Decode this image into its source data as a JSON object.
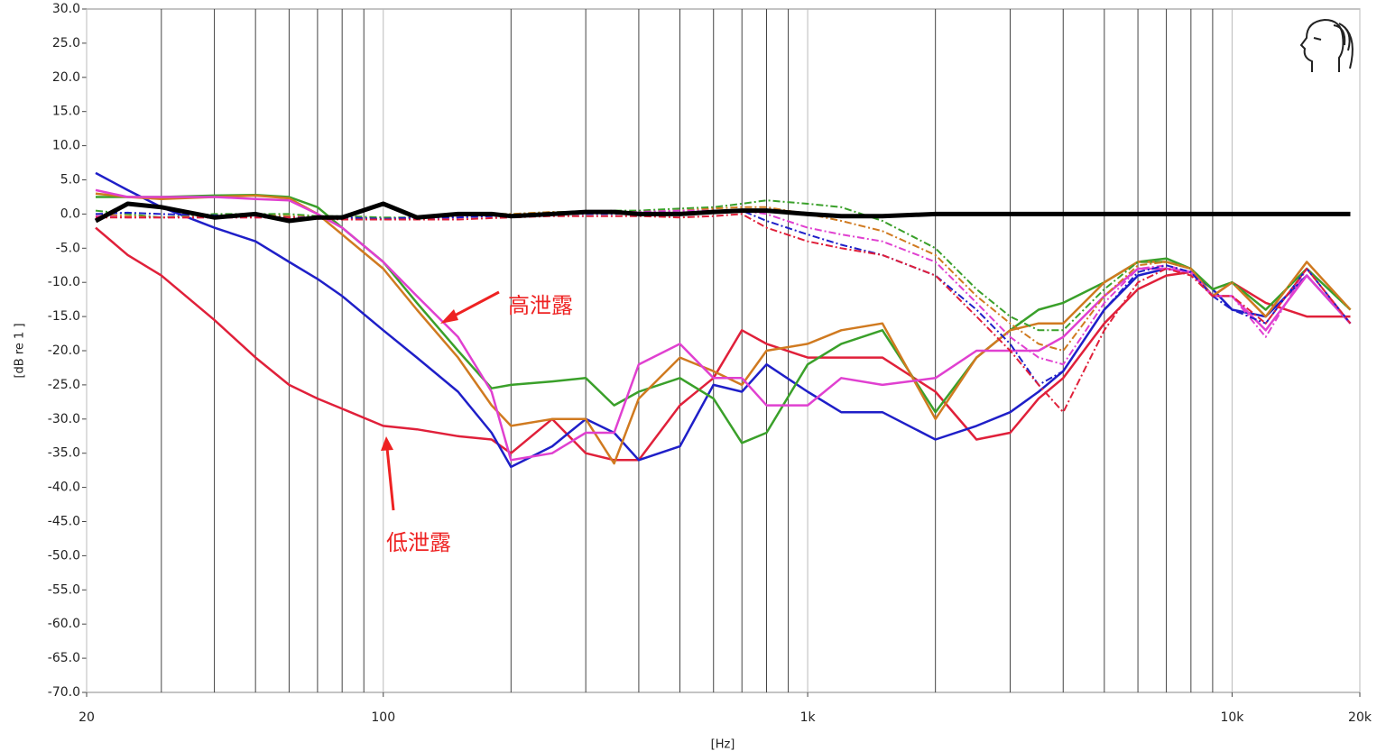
{
  "chart_data": {
    "type": "line",
    "x_label": "[Hz]",
    "y_label": "[dB re 1 ]",
    "xlog": true,
    "xlim": [
      20,
      20000
    ],
    "ylim": [
      -70,
      30
    ],
    "grid": true,
    "xticks": [
      {
        "value": 20,
        "label": "20"
      },
      {
        "value": 100,
        "label": "100"
      },
      {
        "value": 1000,
        "label": "1k"
      },
      {
        "value": 10000,
        "label": "10k"
      },
      {
        "value": 20000,
        "label": "20k"
      }
    ],
    "x_minor_grid": [
      30,
      40,
      50,
      60,
      70,
      80,
      90,
      200,
      300,
      400,
      500,
      600,
      700,
      800,
      900,
      2000,
      3000,
      4000,
      5000,
      6000,
      7000,
      8000,
      9000
    ],
    "yticks": [
      {
        "value": 30,
        "label": "30.0"
      },
      {
        "value": 25,
        "label": "25.0"
      },
      {
        "value": 20,
        "label": "20.0"
      },
      {
        "value": 15,
        "label": "15.0"
      },
      {
        "value": 10,
        "label": "10.0"
      },
      {
        "value": 5,
        "label": "5.0"
      },
      {
        "value": 0,
        "label": "0.0"
      },
      {
        "value": -5,
        "label": "-5.0"
      },
      {
        "value": -10,
        "label": "-10.0"
      },
      {
        "value": -15,
        "label": "-15.0"
      },
      {
        "value": -20,
        "label": "-20.0"
      },
      {
        "value": -25,
        "label": "-25.0"
      },
      {
        "value": -30,
        "label": "-30.0"
      },
      {
        "value": -35,
        "label": "-35.0"
      },
      {
        "value": -40,
        "label": "-40.0"
      },
      {
        "value": -45,
        "label": "-45.0"
      },
      {
        "value": -50,
        "label": "-50.0"
      },
      {
        "value": -55,
        "label": "-55.0"
      },
      {
        "value": -60,
        "label": "-60.0"
      },
      {
        "value": -65,
        "label": "-65.0"
      },
      {
        "value": -70,
        "label": "-70.0"
      }
    ],
    "annotations": [
      "高泄露",
      "低泄露"
    ],
    "x": [
      21,
      25,
      30,
      40,
      50,
      60,
      70,
      80,
      100,
      120,
      150,
      180,
      200,
      250,
      300,
      350,
      400,
      500,
      600,
      700,
      800,
      1000,
      1200,
      1500,
      2000,
      2500,
      3000,
      3500,
      4000,
      5000,
      6000,
      7000,
      8000,
      9000,
      10000,
      12000,
      15000,
      19000
    ],
    "series": [
      {
        "color": "#e0203a",
        "style": "solid",
        "values": [
          -2,
          -6,
          -9,
          -15.5,
          -21,
          -25,
          -27,
          -28.5,
          -31,
          -31.5,
          -32.5,
          -33,
          -35,
          -30,
          -35,
          -36,
          -36,
          -28,
          -24,
          -17,
          -19,
          -21,
          -21,
          -21,
          -26,
          -33,
          -32,
          -27,
          -24,
          -16,
          -11,
          -9,
          -8.5,
          -12,
          -10,
          -13,
          -15,
          -15
        ]
      },
      {
        "color": "#1f1fc8",
        "style": "solid",
        "values": [
          6,
          3.5,
          1,
          -2,
          -4,
          -7,
          -9.5,
          -12,
          -17,
          -21,
          -26,
          -32,
          -37,
          -34,
          -30,
          -32,
          -36,
          -34,
          -25,
          -26,
          -22,
          -26,
          -29,
          -29,
          -33,
          -31,
          -29,
          -26,
          -23,
          -14,
          -9,
          -8,
          -8.5,
          -11,
          -14,
          -15,
          -9,
          -16
        ]
      },
      {
        "color": "#3aa02a",
        "style": "solid",
        "values": [
          2.5,
          2.5,
          2.5,
          2.7,
          2.8,
          2.5,
          1,
          -2,
          -7,
          -13,
          -20,
          -25.5,
          -25,
          -24.5,
          -24,
          -28,
          -26,
          -24,
          -27,
          -33.5,
          -32,
          -22,
          -19,
          -17,
          -29,
          -21,
          -17,
          -14,
          -13,
          -10,
          -7,
          -6.5,
          -8,
          -11,
          -10,
          -14,
          -8,
          -14
        ]
      },
      {
        "color": "#d07a20",
        "style": "solid",
        "values": [
          3,
          2.5,
          2.2,
          2.5,
          2.7,
          2.3,
          0,
          -3,
          -8,
          -14,
          -21,
          -28,
          -31,
          -30,
          -30,
          -36.5,
          -27,
          -21,
          -23,
          -25,
          -20,
          -19,
          -17,
          -16,
          -30,
          -21,
          -17,
          -16,
          -16,
          -10,
          -7,
          -7,
          -8,
          -12,
          -10,
          -15,
          -7,
          -14
        ]
      },
      {
        "color": "#e040d0",
        "style": "solid",
        "values": [
          3.5,
          2.5,
          2.5,
          2.5,
          2.2,
          2,
          0,
          -2,
          -7,
          -12,
          -18,
          -26,
          -36,
          -35,
          -32,
          -32,
          -22,
          -19,
          -24,
          -24,
          -28,
          -28,
          -24,
          -25,
          -24,
          -20,
          -20,
          -20,
          -18,
          -12,
          -8,
          -8,
          -8.5,
          -12,
          -12,
          -17,
          -9,
          -16
        ]
      },
      {
        "color": "#3aa02a",
        "style": "dashdot",
        "values": [
          0.5,
          0,
          -0.5,
          0,
          0,
          0,
          -0.3,
          -0.3,
          -0.5,
          -0.5,
          -0.3,
          0,
          0,
          0.3,
          0.3,
          0.5,
          0.5,
          0.8,
          1,
          1.5,
          2,
          1.5,
          1,
          -1,
          -5,
          -11,
          -15,
          -17,
          -17,
          -11,
          -7,
          -7,
          -8,
          -11,
          -10,
          -14,
          -8,
          -14
        ]
      },
      {
        "color": "#d07a20",
        "style": "dashdot",
        "values": [
          0,
          -0.3,
          -0.5,
          -0.3,
          -0.2,
          -0.3,
          -0.5,
          -0.5,
          -0.8,
          -0.5,
          -0.3,
          0,
          0,
          0.3,
          0.2,
          0.3,
          0.3,
          0.5,
          0.8,
          1,
          1,
          0,
          -1,
          -2.5,
          -6,
          -12,
          -16,
          -19,
          -20,
          -12,
          -7.5,
          -7,
          -8,
          -12,
          -10,
          -15,
          -7,
          -14
        ]
      },
      {
        "color": "#e040d0",
        "style": "dashdot",
        "values": [
          -0.3,
          -0.5,
          -0.5,
          -0.5,
          -0.5,
          -0.5,
          -0.5,
          -0.8,
          -0.8,
          -0.6,
          -0.5,
          -0.3,
          -0.2,
          0,
          0.2,
          0.2,
          0.3,
          0.5,
          0.5,
          0.5,
          0,
          -2,
          -3,
          -4,
          -7,
          -13,
          -18,
          -21,
          -22,
          -13,
          -8,
          -7.5,
          -8.5,
          -12,
          -12,
          -18,
          -8,
          -16
        ]
      },
      {
        "color": "#1f1fc8",
        "style": "dashdot",
        "values": [
          0,
          0.2,
          0,
          -0.2,
          -0.3,
          -0.5,
          -0.5,
          -0.5,
          -0.7,
          -0.5,
          -0.5,
          -0.3,
          -0.3,
          0,
          0,
          0,
          0.2,
          0.2,
          0.3,
          0.5,
          -1,
          -3,
          -4.5,
          -6,
          -9,
          -14,
          -19,
          -25,
          -23,
          -14,
          -8.5,
          -7.5,
          -8.5,
          -12,
          -14,
          -16,
          -8,
          -16
        ]
      },
      {
        "color": "#e0203a",
        "style": "dashdot",
        "values": [
          -0.5,
          -0.5,
          -0.5,
          -0.5,
          -0.5,
          -0.5,
          -0.7,
          -0.8,
          -0.8,
          -0.8,
          -0.8,
          -0.6,
          -0.5,
          -0.3,
          -0.3,
          -0.3,
          -0.3,
          -0.5,
          -0.3,
          0,
          -2,
          -4,
          -5,
          -6,
          -9,
          -15,
          -20,
          -25,
          -29,
          -17,
          -10,
          -8,
          -9,
          -12,
          -12,
          -16,
          -8,
          -16
        ]
      },
      {
        "color": "#000000",
        "style": "thick",
        "values": [
          -1,
          1.5,
          1,
          -0.5,
          0,
          -1,
          -0.5,
          -0.5,
          1.5,
          -0.5,
          0,
          0,
          -0.3,
          0,
          0.3,
          0.3,
          0,
          0,
          0.3,
          0.5,
          0.5,
          0,
          -0.3,
          -0.3,
          0,
          0,
          0,
          0,
          0,
          0,
          0,
          0,
          0,
          0,
          0,
          0,
          0,
          0
        ]
      }
    ]
  }
}
